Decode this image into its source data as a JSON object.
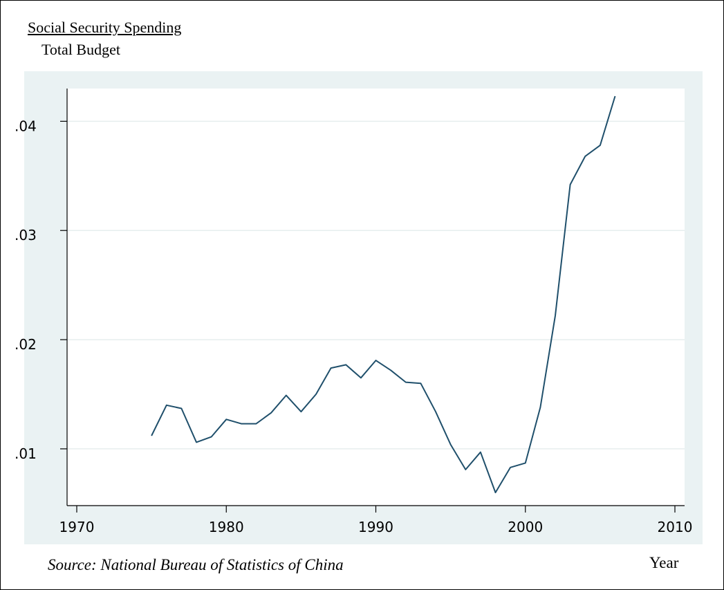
{
  "chart_data": {
    "type": "line",
    "ylabel_line1": "Social Security Spending",
    "ylabel_line2": "Total Budget",
    "xlabel": "Year",
    "note": "Source: National Bureau of Statistics of China",
    "xlim": [
      1970,
      2010
    ],
    "ylim": [
      0.0048,
      0.043
    ],
    "x_ticks": [
      1970,
      1980,
      1990,
      2000,
      2010
    ],
    "x_tick_labels": [
      "1970",
      "1980",
      "1990",
      "2000",
      "2010"
    ],
    "y_ticks": [
      0.01,
      0.02,
      0.03,
      0.04
    ],
    "y_tick_labels": [
      ".01",
      ".02",
      ".03",
      ".04"
    ],
    "grid": "horizontal",
    "legend": "none",
    "colors": {
      "plot_background": "#eaf2f3",
      "inner_background": "#ffffff",
      "line": "#1f4f6b",
      "grid": "#e6eeee",
      "axis": "#000000"
    },
    "series": [
      {
        "x": [
          1975,
          1976,
          1977,
          1978,
          1979,
          1980,
          1981,
          1982,
          1983,
          1984,
          1985,
          1986,
          1987,
          1988,
          1989,
          1990,
          1991,
          1992,
          1993,
          1994,
          1995,
          1996,
          1997,
          1998,
          1999,
          2000,
          2001,
          2002,
          2003,
          2004,
          2005,
          2006
        ],
        "values": [
          0.0112,
          0.014,
          0.0137,
          0.0106,
          0.0111,
          0.0127,
          0.0123,
          0.0123,
          0.0133,
          0.0149,
          0.0134,
          0.015,
          0.0174,
          0.0177,
          0.0165,
          0.0181,
          0.0172,
          0.0161,
          0.016,
          0.0134,
          0.0104,
          0.0081,
          0.0097,
          0.006,
          0.0083,
          0.0087,
          0.0138,
          0.0222,
          0.0342,
          0.0368,
          0.0378,
          0.0423
        ]
      }
    ]
  }
}
